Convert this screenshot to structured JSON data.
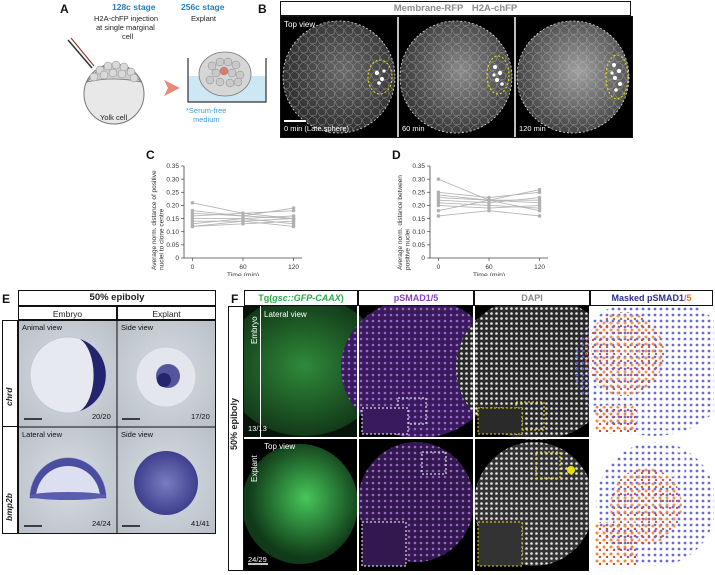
{
  "panels": {
    "A": {
      "label": "A",
      "stage1_title": "128c stage",
      "stage1_line1": "H2A-chFP injection",
      "stage1_line2": "at single marginal",
      "stage1_line3": "cell",
      "yolk_label": "Yolk cell",
      "stage2_title": "256c stage",
      "stage2_sub": "Explant",
      "medium_line1": "*Serum-free",
      "medium_line2": "medium",
      "colors": {
        "stage": "#1f7fc0",
        "medium": "#3aa0d8",
        "arrow": "#e88a7a"
      }
    },
    "B": {
      "label": "B",
      "header_part1": "Membrane-RFP",
      "header_part2": "H2A-chFP",
      "view": "Top view",
      "time1": "0 min (Late sphere)",
      "time2": "60 min",
      "time3": "120 min"
    },
    "C": {
      "label": "C"
    },
    "D": {
      "label": "D"
    },
    "E": {
      "label": "E",
      "header": "50% epiboly",
      "col1": "Embryo",
      "col2": "Explant",
      "row1": "chrd",
      "row2": "bmp2b",
      "view_r1c1": "Animal view",
      "view_r1c2": "Side view",
      "view_r2c1": "Lateral view",
      "view_r2c2": "Side view",
      "count_r1c1": "20/20",
      "count_r1c2": "17/20",
      "count_r2c1": "24/24",
      "count_r2c2": "41/41"
    },
    "F": {
      "label": "F",
      "col1_prefix": "Tg(",
      "col1_italic": "gsc::GFP-CAAX",
      "col1_suffix": ")",
      "col2": "pSMAD1/5",
      "col3": "DAPI",
      "col4_a": "Masked ",
      "col4_b": "pSMAD1",
      "col4_c": "/5",
      "side_label": "50% epiboly",
      "row1": "Embryo",
      "row2": "Explant",
      "view_r1": "Lateral view",
      "view_r2": "Top view",
      "count_r1": "13/13",
      "count_r2": "24/29",
      "colors": {
        "green": "#2aa845",
        "purple": "#8a3fc4",
        "gray": "#888888",
        "navy": "#2b2f8f",
        "orange": "#e8742a"
      }
    }
  },
  "chart_data": [
    {
      "type": "line",
      "panel": "C",
      "ylabel": "Average norm. distance of positive nuclei to clone centre",
      "xlabel": "Time (min)",
      "x": [
        0,
        60,
        120
      ],
      "ylim": [
        0,
        0.35
      ],
      "yticks": [
        "0",
        "0.05",
        "0.10",
        "0.15",
        "0.20",
        "0.25",
        "0.30",
        "0.35"
      ],
      "xticks": [
        "0",
        "60",
        "120"
      ],
      "series": [
        {
          "values": [
            0.21,
            0.17,
            0.18
          ]
        },
        {
          "values": [
            0.18,
            0.16,
            0.19
          ]
        },
        {
          "values": [
            0.17,
            0.16,
            0.15
          ]
        },
        {
          "values": [
            0.16,
            0.17,
            0.15
          ]
        },
        {
          "values": [
            0.15,
            0.15,
            0.16
          ]
        },
        {
          "values": [
            0.14,
            0.14,
            0.15
          ]
        },
        {
          "values": [
            0.13,
            0.15,
            0.13
          ]
        },
        {
          "values": [
            0.12,
            0.13,
            0.14
          ]
        },
        {
          "values": [
            0.12,
            0.14,
            0.12
          ]
        }
      ]
    },
    {
      "type": "line",
      "panel": "D",
      "ylabel": "Average norm. distance between positive nuclei",
      "xlabel": "Time (min)",
      "x": [
        0,
        60,
        120
      ],
      "ylim": [
        0,
        0.35
      ],
      "yticks": [
        "0",
        "0.05",
        "0.10",
        "0.15",
        "0.20",
        "0.25",
        "0.30",
        "0.35"
      ],
      "xticks": [
        "0",
        "60",
        "120"
      ],
      "series": [
        {
          "values": [
            0.3,
            0.22,
            0.26
          ]
        },
        {
          "values": [
            0.25,
            0.23,
            0.25
          ]
        },
        {
          "values": [
            0.24,
            0.22,
            0.22
          ]
        },
        {
          "values": [
            0.23,
            0.22,
            0.21
          ]
        },
        {
          "values": [
            0.22,
            0.21,
            0.23
          ]
        },
        {
          "values": [
            0.21,
            0.2,
            0.19
          ]
        },
        {
          "values": [
            0.2,
            0.19,
            0.2
          ]
        },
        {
          "values": [
            0.18,
            0.22,
            0.18
          ]
        },
        {
          "values": [
            0.16,
            0.18,
            0.16
          ]
        }
      ]
    }
  ]
}
